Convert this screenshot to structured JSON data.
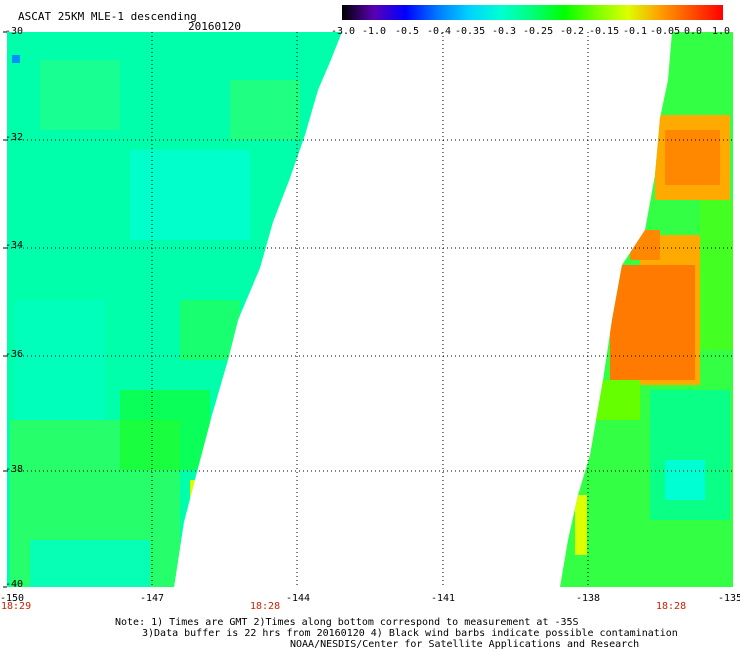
{
  "header": {
    "title": "ASCAT 25KM MLE-1 descending",
    "date": "20160120"
  },
  "colorbar": {
    "labels": [
      "-3.0",
      "-1.0",
      "-0.5",
      "-0.4",
      "-0.35",
      "-0.3",
      "-0.25",
      "-0.2",
      "-0.15",
      "-0.1",
      "-0.05",
      "0.0",
      "1.0"
    ],
    "colors": [
      "#000000",
      "#5a00b4",
      "#0000ff",
      "#0078ff",
      "#00d2ff",
      "#00ffd2",
      "#00ff78",
      "#00ff00",
      "#78ff00",
      "#dcff00",
      "#ffa000",
      "#ff5000",
      "#ff0000"
    ]
  },
  "axes": {
    "lat_labels": [
      "-30",
      "-32",
      "-34",
      "-36",
      "-38",
      "-40"
    ],
    "lon_labels": [
      "-150",
      "-147",
      "-144",
      "-141",
      "-138",
      "-135"
    ],
    "times": [
      "18:29",
      "18:28",
      "18:28"
    ]
  },
  "notes": {
    "line1": "Note: 1) Times are GMT 2)Times along bottom correspond to measurement at -35S",
    "line2": "3)Data buffer is 22 hrs from 20160120 4) Black wind barbs indicate possible contamination",
    "line3": "NOAA/NESDIS/Center for Satellite Applications and Research"
  }
}
